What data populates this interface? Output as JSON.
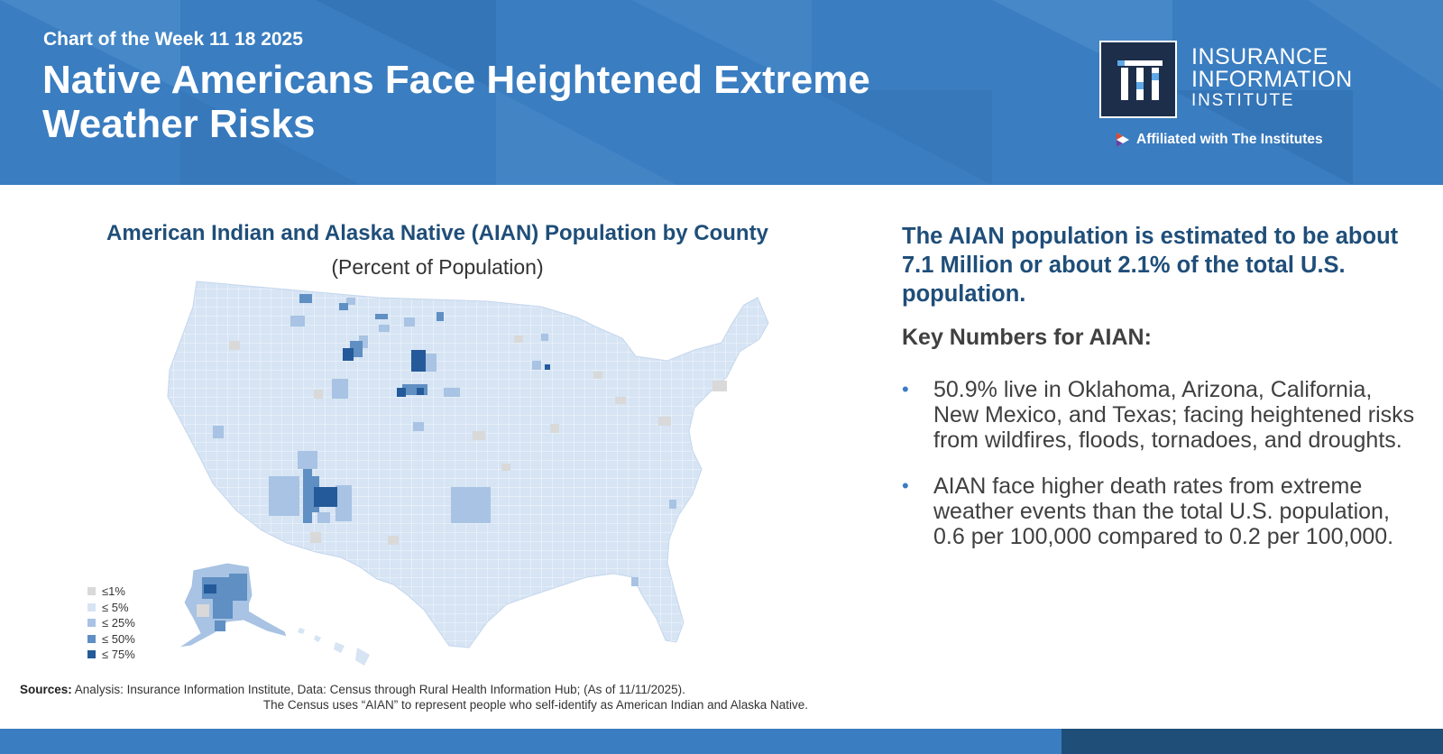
{
  "header": {
    "kicker": "Chart of the Week 11 18 2025",
    "headline": "Native Americans Face Heightened Extreme Weather Risks",
    "logo": {
      "line1": "INSURANCE",
      "line2": "INFORMATION",
      "line3": "INSTITUTE",
      "affiliation": "Affiliated with The Institutes"
    }
  },
  "map": {
    "title": "American Indian and Alaska Native (AIAN) Population by County",
    "subtitle": "(Percent of Population)",
    "legend": [
      {
        "label": "≤1%",
        "color": "#d9d9d9"
      },
      {
        "label": "≤ 5%",
        "color": "#d6e4f4"
      },
      {
        "label": "≤ 25%",
        "color": "#a8c3e3"
      },
      {
        "label": "≤ 50%",
        "color": "#5f8fc3"
      },
      {
        "label": "≤ 75%",
        "color": "#245a99"
      }
    ]
  },
  "sources": {
    "label": "Sources:",
    "line1": "Analysis: Insurance Information Institute, Data: Census through Rural Health Information Hub; (As of 11/11/2025).",
    "line2": "The Census uses “AIAN” to represent people who self-identify as American Indian and Alaska Native."
  },
  "summary": {
    "stat": "The AIAN population is estimated to be about 7.1 Million or about 2.1% of the total U.S. population.",
    "key_heading": "Key Numbers for AIAN:",
    "bullets": [
      "50.9% live in Oklahoma, Arizona, California, New Mexico, and Texas; facing heightened risks from wildfires, floods, tornadoes, and droughts.",
      "AIAN face higher death rates from extreme weather events than the total U.S. population, 0.6 per 100,000 compared to 0.2 per 100,000."
    ]
  },
  "colors": {
    "brand_blue": "#3a7dc0",
    "navy": "#1f4e79",
    "logo_bg": "#1c2e4a"
  }
}
